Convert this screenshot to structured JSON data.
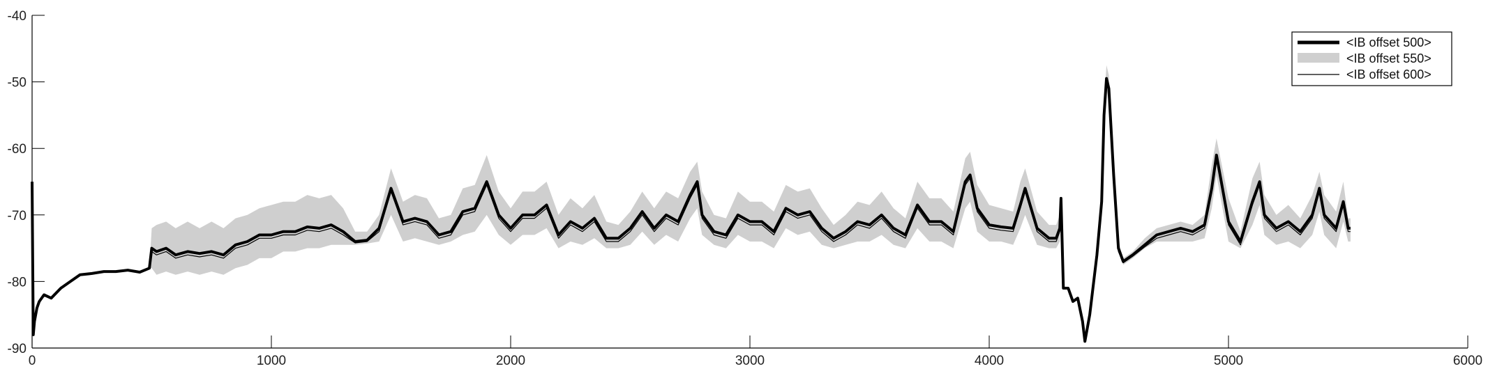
{
  "chart_data": {
    "type": "line",
    "title": "",
    "xlabel": "",
    "ylabel": "",
    "xlim": [
      0,
      6000
    ],
    "ylim": [
      -90,
      -40
    ],
    "xticks": [
      0,
      1000,
      2000,
      3000,
      4000,
      5000,
      6000
    ],
    "yticks": [
      -40,
      -50,
      -60,
      -70,
      -80,
      -90
    ],
    "grid": false,
    "legend_position": "top-right",
    "series": [
      {
        "name": "<IB offset 500>",
        "style": "thick black line",
        "color": "#000000",
        "x": [
          0,
          5,
          10,
          20,
          30,
          50,
          80,
          120,
          160,
          200,
          250,
          300,
          350,
          400,
          450,
          490,
          500,
          520,
          560,
          600,
          650,
          700,
          750,
          800,
          850,
          900,
          950,
          1000,
          1050,
          1100,
          1150,
          1200,
          1250,
          1300,
          1350,
          1400,
          1450,
          1500,
          1550,
          1600,
          1650,
          1700,
          1750,
          1800,
          1850,
          1900,
          1950,
          2000,
          2050,
          2100,
          2150,
          2200,
          2250,
          2300,
          2350,
          2400,
          2450,
          2500,
          2550,
          2600,
          2650,
          2700,
          2750,
          2780,
          2800,
          2850,
          2900,
          2950,
          3000,
          3050,
          3100,
          3150,
          3200,
          3250,
          3300,
          3350,
          3400,
          3450,
          3500,
          3550,
          3600,
          3650,
          3700,
          3750,
          3800,
          3850,
          3900,
          3920,
          3950,
          4000,
          4050,
          4100,
          4130,
          4150,
          4200,
          4250,
          4280,
          4295,
          4300,
          4310,
          4330,
          4350,
          4370,
          4390,
          4400,
          4420,
          4450,
          4470,
          4480,
          4490,
          4500,
          4520,
          4540,
          4560,
          4600,
          4650,
          4700,
          4750,
          4800,
          4850,
          4900,
          4930,
          4950,
          5000,
          5050,
          5100,
          5130,
          5150,
          5200,
          5250,
          5300,
          5350,
          5380,
          5400,
          5450,
          5480,
          5500,
          5510
        ],
        "y": [
          -65,
          -88,
          -86,
          -84,
          -83,
          -82,
          -82.5,
          -81,
          -80,
          -79,
          -78.8,
          -78.5,
          -78.5,
          -78.3,
          -78.6,
          -78,
          -75,
          -75.5,
          -75,
          -76,
          -75.5,
          -75.8,
          -75.5,
          -76,
          -74.5,
          -74,
          -73,
          -73,
          -72.5,
          -72.5,
          -71.8,
          -72,
          -71.5,
          -72.5,
          -74,
          -73.8,
          -72,
          -66,
          -71,
          -70.5,
          -71,
          -73,
          -72.5,
          -69.5,
          -69,
          -65,
          -70,
          -72,
          -70,
          -70,
          -68.5,
          -73,
          -71,
          -72,
          -70.5,
          -73.5,
          -73.5,
          -72,
          -69.5,
          -72,
          -70,
          -71,
          -67,
          -65,
          -70,
          -72.5,
          -73,
          -70,
          -71,
          -71,
          -72.5,
          -69,
          -70,
          -69.5,
          -72,
          -73.5,
          -72.5,
          -71,
          -71.5,
          -70,
          -72,
          -73,
          -68.5,
          -71,
          -71,
          -72.5,
          -65,
          -64,
          -69,
          -71.5,
          -71.8,
          -72,
          -68.5,
          -66,
          -72,
          -73.5,
          -73.5,
          -72,
          -67.5,
          -81,
          -81,
          -83,
          -82.5,
          -86,
          -89,
          -85,
          -76,
          -68,
          -55,
          -49.5,
          -51,
          -64,
          -75,
          -77,
          -76,
          -74.5,
          -73,
          -72.5,
          -72,
          -72.5,
          -71.5,
          -66,
          -61,
          -71,
          -74,
          -68,
          -65,
          -70,
          -72,
          -71,
          -72.5,
          -70,
          -66,
          -70,
          -72,
          -68,
          -72,
          -72
        ]
      },
      {
        "name": "<IB offset 550>",
        "style": "light gray band",
        "color": "#cfcfcf",
        "x": [
          0,
          5,
          10,
          20,
          30,
          50,
          80,
          120,
          160,
          200,
          250,
          300,
          350,
          400,
          450,
          490,
          500,
          520,
          560,
          600,
          650,
          700,
          750,
          800,
          850,
          900,
          950,
          1000,
          1050,
          1100,
          1150,
          1200,
          1250,
          1300,
          1350,
          1400,
          1450,
          1500,
          1550,
          1600,
          1650,
          1700,
          1750,
          1800,
          1850,
          1900,
          1950,
          2000,
          2050,
          2100,
          2150,
          2200,
          2250,
          2300,
          2350,
          2400,
          2450,
          2500,
          2550,
          2600,
          2650,
          2700,
          2750,
          2780,
          2800,
          2850,
          2900,
          2950,
          3000,
          3050,
          3100,
          3150,
          3200,
          3250,
          3300,
          3350,
          3400,
          3450,
          3500,
          3550,
          3600,
          3650,
          3700,
          3750,
          3800,
          3850,
          3900,
          3920,
          3950,
          4000,
          4050,
          4100,
          4130,
          4150,
          4200,
          4250,
          4280,
          4295,
          4300,
          4310,
          4330,
          4350,
          4370,
          4390,
          4400,
          4420,
          4450,
          4470,
          4480,
          4490,
          4500,
          4520,
          4540,
          4560,
          4600,
          4650,
          4700,
          4750,
          4800,
          4850,
          4900,
          4930,
          4950,
          5000,
          5050,
          5100,
          5130,
          5150,
          5200,
          5250,
          5300,
          5350,
          5380,
          5400,
          5450,
          5480,
          5500,
          5510
        ],
        "y_low": [
          -65,
          -88,
          -86,
          -84,
          -83,
          -82,
          -82.5,
          -81,
          -80,
          -79,
          -78.8,
          -78.5,
          -78.5,
          -78.3,
          -78.6,
          -78,
          -78,
          -79,
          -78.5,
          -79,
          -78.5,
          -79,
          -78.5,
          -79,
          -78,
          -77.5,
          -76.5,
          -76.5,
          -75.5,
          -75.5,
          -75,
          -75,
          -74.5,
          -74.5,
          -74.5,
          -74.3,
          -74,
          -70,
          -74,
          -73.5,
          -74,
          -74.5,
          -74,
          -73,
          -72.5,
          -70,
          -73,
          -74.5,
          -73,
          -73,
          -72,
          -75,
          -74,
          -74.5,
          -73.5,
          -75,
          -75,
          -74.5,
          -72.5,
          -74.5,
          -73,
          -74,
          -70.5,
          -69,
          -73,
          -74.5,
          -75,
          -73,
          -74,
          -74,
          -75,
          -72,
          -73,
          -72.5,
          -74.5,
          -75,
          -74.5,
          -74,
          -74,
          -73,
          -74.5,
          -75,
          -72,
          -74,
          -74,
          -75,
          -69,
          -68,
          -72.5,
          -74,
          -74,
          -74.5,
          -72,
          -70,
          -74.5,
          -75,
          -75,
          -74,
          -67.5,
          -81,
          -81,
          -83,
          -82.5,
          -86,
          -89,
          -85,
          -76,
          -68,
          -57,
          -51,
          -53,
          -65,
          -75,
          -77.5,
          -76.5,
          -75,
          -74,
          -74,
          -74,
          -74,
          -73.5,
          -69,
          -64,
          -74,
          -75,
          -71.5,
          -68.5,
          -73,
          -74.5,
          -74,
          -75,
          -73,
          -69.5,
          -73,
          -75,
          -71,
          -74,
          -74
        ],
        "y_high": [
          -65,
          -88,
          -86,
          -84,
          -83,
          -82,
          -82.5,
          -81,
          -80,
          -79,
          -78.8,
          -78.5,
          -78.5,
          -78.3,
          -78.6,
          -78,
          -72,
          -71.5,
          -71,
          -72,
          -71,
          -72,
          -71,
          -72,
          -70.5,
          -70,
          -69,
          -68.5,
          -68,
          -68,
          -67,
          -67.5,
          -67,
          -69,
          -72.5,
          -72.5,
          -70,
          -63,
          -68,
          -67,
          -67.5,
          -70.5,
          -70,
          -66,
          -65.5,
          -61,
          -66.5,
          -69,
          -66.5,
          -66.5,
          -65,
          -70,
          -67.5,
          -69,
          -67,
          -71,
          -71.5,
          -69.5,
          -66.5,
          -69,
          -66.5,
          -67.5,
          -63.5,
          -62,
          -66.5,
          -70,
          -70.5,
          -66.5,
          -68,
          -68,
          -69.5,
          -65.5,
          -66.5,
          -66,
          -69,
          -71.5,
          -70,
          -68,
          -68.5,
          -66.5,
          -69,
          -70.5,
          -65,
          -67.5,
          -67.5,
          -69.5,
          -61.5,
          -60.5,
          -65.5,
          -68.5,
          -69,
          -69.5,
          -65,
          -63,
          -69.5,
          -71.5,
          -71.5,
          -70,
          -67.5,
          -81,
          -81,
          -83,
          -82.5,
          -86,
          -89,
          -85,
          -76,
          -68,
          -53,
          -47.5,
          -49,
          -62,
          -74,
          -76.5,
          -75.5,
          -73.5,
          -72,
          -71.5,
          -71,
          -71.5,
          -70,
          -62.5,
          -58.5,
          -67.5,
          -72.5,
          -64.5,
          -62,
          -67,
          -70,
          -68.5,
          -70.5,
          -67,
          -63.5,
          -67,
          -69.5,
          -65,
          -70.5,
          -70.5
        ]
      },
      {
        "name": "<IB offset 600>",
        "style": "thin black line",
        "color": "#000000",
        "x": [
          0,
          5,
          10,
          20,
          30,
          50,
          80,
          120,
          160,
          200,
          250,
          300,
          350,
          400,
          450,
          490,
          500,
          520,
          560,
          600,
          650,
          700,
          750,
          800,
          850,
          900,
          950,
          1000,
          1050,
          1100,
          1150,
          1200,
          1250,
          1300,
          1350,
          1400,
          1450,
          1500,
          1550,
          1600,
          1650,
          1700,
          1750,
          1800,
          1850,
          1900,
          1950,
          2000,
          2050,
          2100,
          2150,
          2200,
          2250,
          2300,
          2350,
          2400,
          2450,
          2500,
          2550,
          2600,
          2650,
          2700,
          2750,
          2780,
          2800,
          2850,
          2900,
          2950,
          3000,
          3050,
          3100,
          3150,
          3200,
          3250,
          3300,
          3350,
          3400,
          3450,
          3500,
          3550,
          3600,
          3650,
          3700,
          3750,
          3800,
          3850,
          3900,
          3920,
          3950,
          4000,
          4050,
          4100,
          4130,
          4150,
          4200,
          4250,
          4280,
          4295,
          4300,
          4310,
          4330,
          4350,
          4370,
          4390,
          4400,
          4420,
          4450,
          4470,
          4480,
          4490,
          4500,
          4520,
          4540,
          4560,
          4600,
          4650,
          4700,
          4750,
          4800,
          4850,
          4900,
          4930,
          4950,
          5000,
          5050,
          5100,
          5130,
          5150,
          5200,
          5250,
          5300,
          5350,
          5380,
          5400,
          5450,
          5480,
          5500,
          5510
        ],
        "y": [
          -65,
          -88,
          -86,
          -84,
          -83,
          -82,
          -82.5,
          -81,
          -80,
          -79,
          -78.8,
          -78.5,
          -78.5,
          -78.3,
          -78.6,
          -78,
          -75.5,
          -76,
          -75.5,
          -76.5,
          -76,
          -76.3,
          -76,
          -76.5,
          -75,
          -74.5,
          -73.5,
          -73.5,
          -73,
          -73,
          -72.3,
          -72.5,
          -72,
          -73,
          -74.2,
          -74,
          -72.5,
          -66.5,
          -71.5,
          -71,
          -71.5,
          -73.5,
          -73,
          -70,
          -69.5,
          -65.5,
          -70.5,
          -72.5,
          -70.5,
          -70.5,
          -69,
          -73.5,
          -71.5,
          -72.5,
          -71,
          -74,
          -74,
          -72.5,
          -70,
          -72.5,
          -70.5,
          -71.5,
          -67.5,
          -65.5,
          -70.5,
          -73,
          -73.5,
          -70.5,
          -71.5,
          -71.5,
          -73,
          -69.5,
          -70.5,
          -70,
          -72.5,
          -74,
          -73,
          -71.5,
          -72,
          -70.5,
          -72.5,
          -73.5,
          -69,
          -71.5,
          -71.5,
          -73,
          -65.5,
          -64.5,
          -69.5,
          -72,
          -72.3,
          -72.5,
          -69,
          -66.5,
          -72.5,
          -74,
          -74,
          -72.5,
          -67.5,
          -81,
          -81,
          -83,
          -82.5,
          -86,
          -89,
          -85,
          -76,
          -68,
          -55.5,
          -50,
          -51.5,
          -64.5,
          -75.5,
          -77.2,
          -76.2,
          -74.8,
          -73.5,
          -73,
          -72.5,
          -73,
          -72,
          -66.5,
          -61.5,
          -71.5,
          -74.5,
          -68.5,
          -65.5,
          -70.5,
          -72.5,
          -71.5,
          -73,
          -70.5,
          -66.5,
          -70.5,
          -72.5,
          -68.5,
          -72.5,
          -72.5
        ]
      }
    ]
  }
}
